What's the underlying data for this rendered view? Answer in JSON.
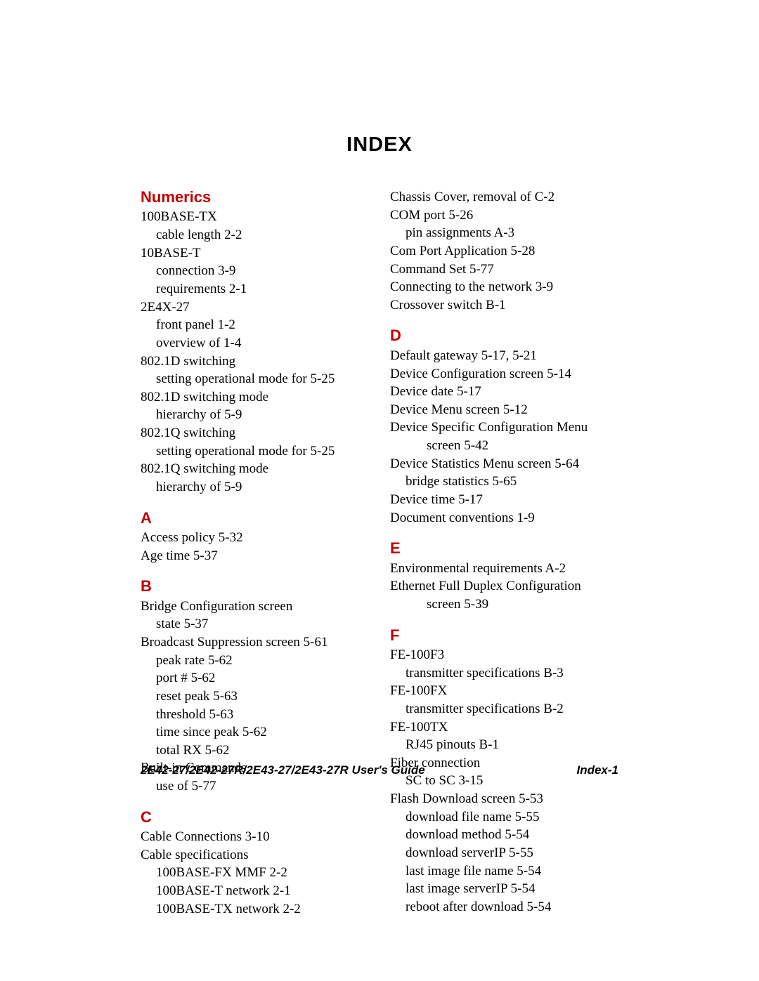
{
  "page": {
    "title": "INDEX",
    "footer_left": "2E42-27/2E42-27R/2E43-27/2E43-27R User's Guide",
    "footer_right": "Index-1",
    "colors": {
      "section_heading": "#c00000",
      "text": "#000000",
      "background": "#ffffff"
    },
    "fonts": {
      "body_family": "Times New Roman",
      "heading_family": "Arial",
      "title_size_pt": 22,
      "heading_size_pt": 17,
      "body_size_pt": 14
    }
  },
  "left_column": [
    {
      "type": "head",
      "text": "Numerics",
      "first": true
    },
    {
      "type": "entry",
      "indent": 0,
      "text": "100BASE-TX"
    },
    {
      "type": "entry",
      "indent": 1,
      "text": "cable length  2-2"
    },
    {
      "type": "entry",
      "indent": 0,
      "text": "10BASE-T"
    },
    {
      "type": "entry",
      "indent": 1,
      "text": "connection  3-9"
    },
    {
      "type": "entry",
      "indent": 1,
      "text": "requirements  2-1"
    },
    {
      "type": "entry",
      "indent": 0,
      "text": "2E4X-27"
    },
    {
      "type": "entry",
      "indent": 1,
      "text": "front panel  1-2"
    },
    {
      "type": "entry",
      "indent": 1,
      "text": "overview of  1-4"
    },
    {
      "type": "entry",
      "indent": 0,
      "text": "802.1D switching"
    },
    {
      "type": "entry",
      "indent": 1,
      "text": "setting operational mode for  5-25"
    },
    {
      "type": "entry",
      "indent": 0,
      "text": "802.1D switching mode"
    },
    {
      "type": "entry",
      "indent": 1,
      "text": "hierarchy of  5-9"
    },
    {
      "type": "entry",
      "indent": 0,
      "text": "802.1Q switching"
    },
    {
      "type": "entry",
      "indent": 1,
      "text": "setting operational mode for  5-25"
    },
    {
      "type": "entry",
      "indent": 0,
      "text": "802.1Q switching mode"
    },
    {
      "type": "entry",
      "indent": 1,
      "text": "hierarchy of  5-9"
    },
    {
      "type": "head",
      "text": "A"
    },
    {
      "type": "entry",
      "indent": 0,
      "text": "Access policy  5-32"
    },
    {
      "type": "entry",
      "indent": 0,
      "text": "Age time  5-37"
    },
    {
      "type": "head",
      "text": "B"
    },
    {
      "type": "entry",
      "indent": 0,
      "text": "Bridge Configuration screen"
    },
    {
      "type": "entry",
      "indent": 1,
      "text": "state  5-37"
    },
    {
      "type": "entry",
      "indent": 0,
      "text": "Broadcast Suppression screen  5-61"
    },
    {
      "type": "entry",
      "indent": 1,
      "text": "peak rate  5-62"
    },
    {
      "type": "entry",
      "indent": 1,
      "text": "port #  5-62"
    },
    {
      "type": "entry",
      "indent": 1,
      "text": "reset peak  5-63"
    },
    {
      "type": "entry",
      "indent": 1,
      "text": "threshold  5-63"
    },
    {
      "type": "entry",
      "indent": 1,
      "text": "time since peak  5-62"
    },
    {
      "type": "entry",
      "indent": 1,
      "text": "total RX  5-62"
    },
    {
      "type": "entry",
      "indent": 0,
      "text": "Built-in Commands"
    },
    {
      "type": "entry",
      "indent": 1,
      "text": "use of  5-77"
    },
    {
      "type": "head",
      "text": "C"
    },
    {
      "type": "entry",
      "indent": 0,
      "text": "Cable Connections  3-10"
    },
    {
      "type": "entry",
      "indent": 0,
      "text": "Cable specifications"
    },
    {
      "type": "entry",
      "indent": 1,
      "text": "100BASE-FX MMF  2-2"
    },
    {
      "type": "entry",
      "indent": 1,
      "text": "100BASE-T network  2-1"
    },
    {
      "type": "entry",
      "indent": 1,
      "text": "100BASE-TX network  2-2"
    }
  ],
  "right_column": [
    {
      "type": "entry",
      "indent": 0,
      "text": "Chassis Cover, removal of  C-2"
    },
    {
      "type": "entry",
      "indent": 0,
      "text": "COM port  5-26"
    },
    {
      "type": "entry",
      "indent": 1,
      "text": "pin assignments  A-3"
    },
    {
      "type": "entry",
      "indent": 0,
      "text": "Com Port Application  5-28"
    },
    {
      "type": "entry",
      "indent": 0,
      "text": "Command Set  5-77"
    },
    {
      "type": "entry",
      "indent": 0,
      "text": "Connecting to the network  3-9"
    },
    {
      "type": "entry",
      "indent": 0,
      "text": "Crossover switch  B-1"
    },
    {
      "type": "head",
      "text": "D"
    },
    {
      "type": "entry",
      "indent": 0,
      "text": "Default gateway  5-17, 5-21"
    },
    {
      "type": "entry",
      "indent": 0,
      "text": "Device Configuration screen  5-14"
    },
    {
      "type": "entry",
      "indent": 0,
      "text": "Device date  5-17"
    },
    {
      "type": "entry",
      "indent": 0,
      "text": "Device Menu screen  5-12"
    },
    {
      "type": "entry",
      "indent": 0,
      "text": "Device Specific Configuration Menu"
    },
    {
      "type": "entry",
      "indent": 2,
      "text": "screen  5-42"
    },
    {
      "type": "entry",
      "indent": 0,
      "text": "Device Statistics Menu screen  5-64"
    },
    {
      "type": "entry",
      "indent": 1,
      "text": "bridge statistics  5-65"
    },
    {
      "type": "entry",
      "indent": 0,
      "text": "Device time  5-17"
    },
    {
      "type": "entry",
      "indent": 0,
      "text": "Document conventions  1-9"
    },
    {
      "type": "head",
      "text": "E"
    },
    {
      "type": "entry",
      "indent": 0,
      "text": "Environmental requirements  A-2"
    },
    {
      "type": "entry",
      "indent": 0,
      "text": "Ethernet Full Duplex Configuration"
    },
    {
      "type": "entry",
      "indent": 2,
      "text": "screen  5-39"
    },
    {
      "type": "head",
      "text": "F"
    },
    {
      "type": "entry",
      "indent": 0,
      "text": "FE-100F3"
    },
    {
      "type": "entry",
      "indent": 1,
      "text": "transmitter specifications  B-3"
    },
    {
      "type": "entry",
      "indent": 0,
      "text": "FE-100FX"
    },
    {
      "type": "entry",
      "indent": 1,
      "text": "transmitter specifications  B-2"
    },
    {
      "type": "entry",
      "indent": 0,
      "text": "FE-100TX"
    },
    {
      "type": "entry",
      "indent": 1,
      "text": "RJ45 pinouts  B-1"
    },
    {
      "type": "entry",
      "indent": 0,
      "text": "Fiber connection"
    },
    {
      "type": "entry",
      "indent": 1,
      "text": "SC to SC  3-15"
    },
    {
      "type": "entry",
      "indent": 0,
      "text": "Flash Download screen  5-53"
    },
    {
      "type": "entry",
      "indent": 1,
      "text": "download file name  5-55"
    },
    {
      "type": "entry",
      "indent": 1,
      "text": "download method  5-54"
    },
    {
      "type": "entry",
      "indent": 1,
      "text": "download serverIP  5-55"
    },
    {
      "type": "entry",
      "indent": 1,
      "text": "last image file name  5-54"
    },
    {
      "type": "entry",
      "indent": 1,
      "text": "last image serverIP  5-54"
    },
    {
      "type": "entry",
      "indent": 1,
      "text": "reboot after download  5-54"
    }
  ]
}
